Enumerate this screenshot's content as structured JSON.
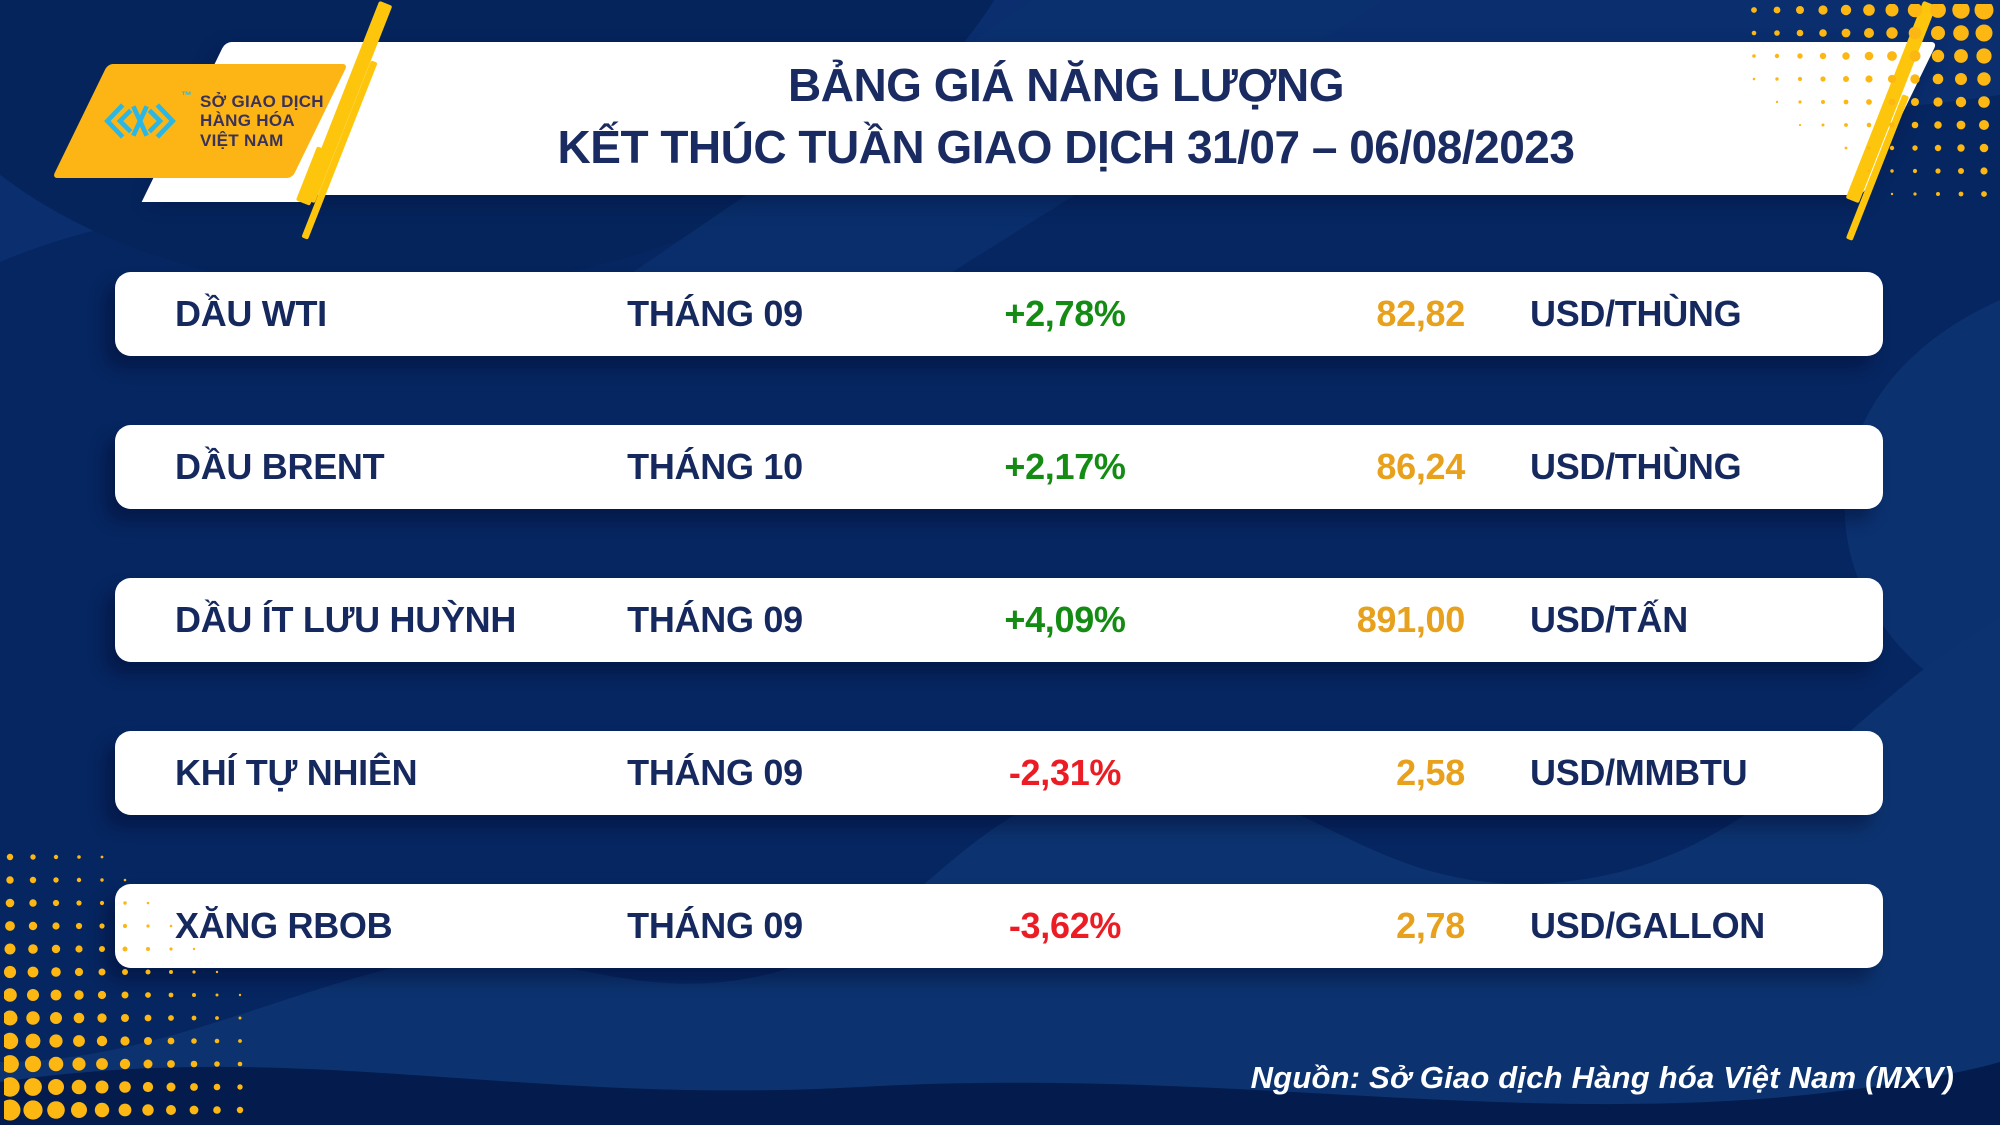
{
  "header": {
    "title_line1": "BẢNG GIÁ NĂNG LƯỢNG",
    "title_line2": "KẾT THÚC TUẦN GIAO DỊCH 31/07 – 06/08/2023"
  },
  "logo": {
    "mark": "mxv-chevron-mark",
    "trademark": "™",
    "org_line1": "SỞ GIAO DỊCH",
    "org_line2": "HÀNG HÓA",
    "org_line3": "VIỆT NAM"
  },
  "table": {
    "rows": [
      {
        "name": "DẦU WTI",
        "month": "THÁNG 09",
        "change": "+2,78%",
        "price": "82,82",
        "unit": "USD/THÙNG"
      },
      {
        "name": "DẦU BRENT",
        "month": "THÁNG 10",
        "change": "+2,17%",
        "price": "86,24",
        "unit": "USD/THÙNG"
      },
      {
        "name": "DẦU ÍT LƯU HUỲNH",
        "month": "THÁNG 09",
        "change": "+4,09%",
        "price": "891,00",
        "unit": "USD/TẤN"
      },
      {
        "name": "KHÍ TỰ NHIÊN",
        "month": "THÁNG 09",
        "change": "-2,31%",
        "price": "2,58",
        "unit": "USD/MMBTU"
      },
      {
        "name": "XĂNG RBOB",
        "month": "THÁNG 09",
        "change": "-3,62%",
        "price": "2,78",
        "unit": "USD/GALLON"
      }
    ]
  },
  "footer": {
    "source": "Nguồn: Sở Giao dịch Hàng hóa Việt Nam (MXV)"
  },
  "colors": {
    "background_navy": "#062661",
    "accent_yellow": "#fcb713",
    "positive_green": "#148c14",
    "negative_red": "#ec1c24",
    "price_gold": "#e7a11c",
    "text_navy": "#16295e",
    "logo_cyan": "#2bb7e5"
  },
  "chart_data": {
    "type": "table",
    "title": "BẢNG GIÁ NĂNG LƯỢNG – KẾT THÚC TUẦN GIAO DỊCH 31/07 – 06/08/2023",
    "rows": [
      [
        "DẦU WTI",
        "THÁNG 09",
        "+2,78%",
        "82,82",
        "USD/THÙNG"
      ],
      [
        "DẦU BRENT",
        "THÁNG 10",
        "+2,17%",
        "86,24",
        "USD/THÙNG"
      ],
      [
        "DẦU ÍT LƯU HUỲNH",
        "THÁNG 09",
        "+4,09%",
        "891,00",
        "USD/TẤN"
      ],
      [
        "KHÍ TỰ NHIÊN",
        "THÁNG 09",
        "-2,31%",
        "2,58",
        "USD/MMBTU"
      ],
      [
        "XĂNG RBOB",
        "THÁNG 09",
        "-3,62%",
        "2,78",
        "USD/GALLON"
      ]
    ],
    "source": "Nguồn: Sở Giao dịch Hàng hóa Việt Nam (MXV)"
  }
}
